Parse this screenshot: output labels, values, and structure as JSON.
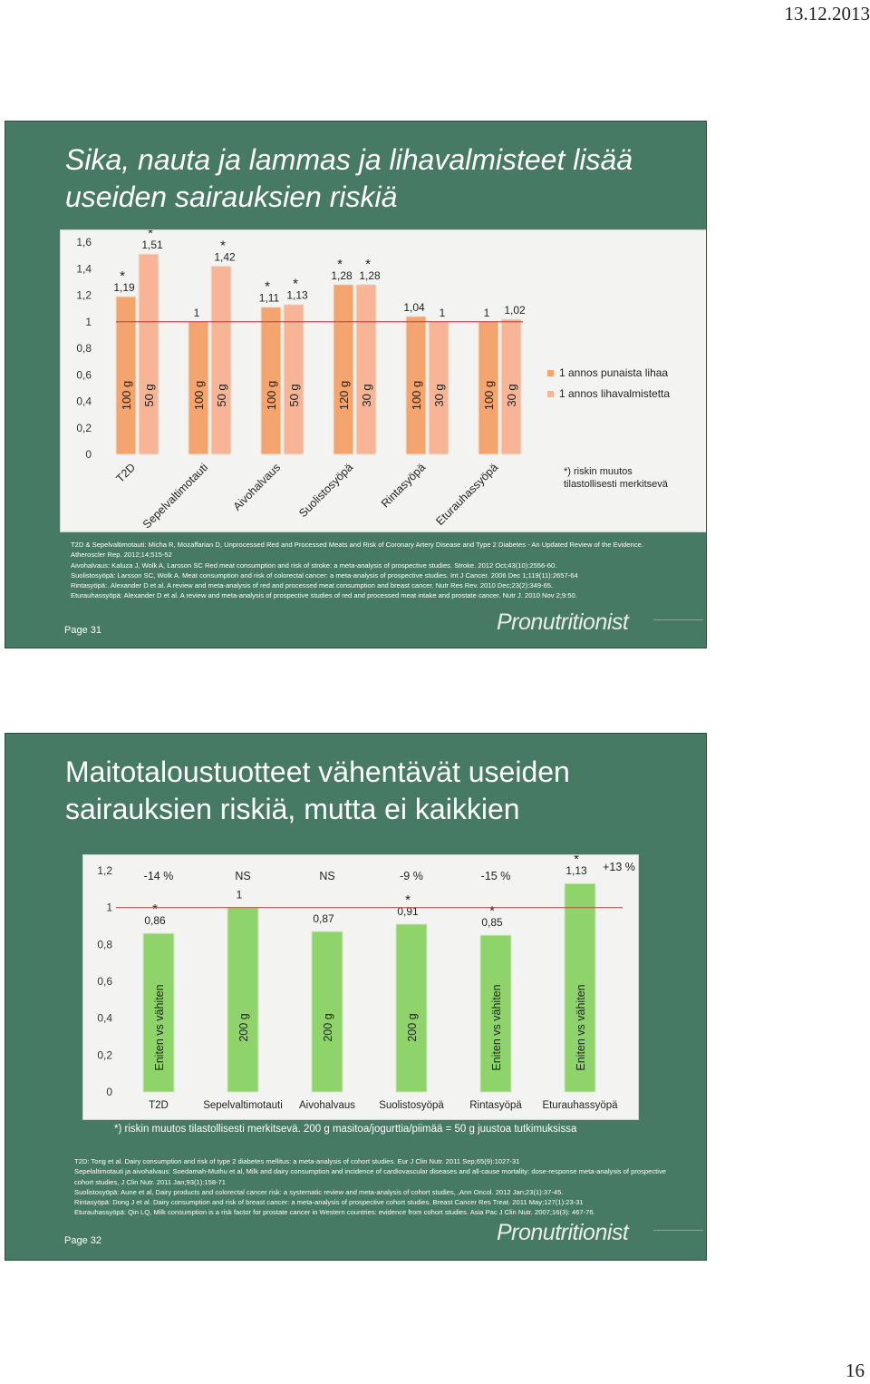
{
  "header": {
    "date": "13.12.2013"
  },
  "footer": {
    "page_number": "16"
  },
  "brand": {
    "name": "Pronutritionist"
  },
  "colors": {
    "slide_bg": "#477a64",
    "bar_red_meat": "#f4a56e",
    "bar_processed": "#f7b596",
    "reference_line": "#c0504d"
  },
  "slide1": {
    "title": "Sika, nauta ja lammas ja lihavalmisteet lisää useiden sairauksien riskiä",
    "legend": [
      "1 annos punaista lihaa",
      "1 annos lihavalmistetta"
    ],
    "note": "*) riskin muutos tilastollisesti merkitsevä",
    "references": [
      "T2D & Sepelvaltimotauti: Micha R, Mozaffarian D, Unprocessed Red and Processed Meats and Risk of Coronary Artery Disease and Type 2 Diabetes - An Updated Review of the Evidence. Atheroscler Rep. 2012;14;515-52",
      "Aivohalvaus: Kaluza J, Wolk A, Larsson SC Red meat consumption and risk of stroke: a meta-analysis of prospective studies. Stroke. 2012 Oct;43(10):2556-60.",
      "Suolistosyöpä: Larsson SC, Wolk A. Meat consumption and risk of colorectal cancer: a meta-analysis of prospective studies. Int J Cancer. 2006 Dec 1;119(11):2657-64",
      "Rintasyöpä:. Alexander D et al. A review and meta-analysis of red and processed meat consumption and breast cancer. Nutr Res Rev. 2010 Dec;23(2):349-65.",
      "Eturauhassyöpä: Alexander D et al.  A review and meta-analysis of prospective studies of red and processed meat intake and prostate cancer. Nutr J. 2010 Nov 2;9:50."
    ],
    "page_label": "Page 31"
  },
  "slide2": {
    "title": "Maitotaloustuotteet vähentävät useiden sairauksien riskiä, mutta ei kaikkien",
    "note": "*) riskin muutos tilastollisesti merkitsevä. 200 g masitoa/jogurttia/piimää = 50 g juustoa tutkimuksissa",
    "references": [
      "T2D: Tong et al. Dairy consumption and risk of type 2 diabetes mellitus:  a meta-analysis of cohort studies. Eur J Clin Nutr. 2011 Sep;65(9):1027-31",
      "Sepelaltimotauti ja aivohalvaus: Soedamah-Muthu et al, Milk and dairy consumption and incidence of cardiovascular diseases and all-cause mortality: dose-response meta-analysis of prospective cohort studies,  J Clin Nutr. 2011 Jan;93(1):158-71",
      "Suolistosyöpä: Aune et al,  Dairy products and colorectal cancer risk: a systematic review and meta-analysis of cohort studies, ,Ann Oncol. 2012 Jan;23(1):37-45.",
      "Rintasyöpä: Dong J et al. Dairy consumption and risk of breast cancer: a meta-analysis of prospective cohort studies. Breast Cancer Res Treat. 2011 May;127(1):23-31",
      "Eturauhassyöpä: Qin LQ, Milk consumption is a risk factor for prostate cancer in Western countries: evidence from cohort studies. Asia Pac J Clin Nutr. 2007;16(3): 467-76."
    ],
    "page_label": "Page 32"
  },
  "chart_data": [
    {
      "type": "bar",
      "categories": [
        "T2D",
        "Sepelvaltimotauti",
        "Aivohalvaus",
        "Suolistosyöpä",
        "Rintasyöpä",
        "Eturauhassyöpä"
      ],
      "series": [
        {
          "name": "1 annos punaista lihaa",
          "values": [
            1.19,
            1,
            1.11,
            1.28,
            1.04,
            1
          ],
          "portions": [
            "100 g",
            "100 g",
            "100 g",
            "120 g",
            "100 g",
            "100 g"
          ],
          "significant": [
            true,
            false,
            true,
            true,
            false,
            false
          ]
        },
        {
          "name": "1 annos lihavalmistetta",
          "values": [
            1.51,
            1.42,
            1.13,
            1.28,
            1,
            1.02
          ],
          "portions": [
            "50 g",
            "50 g",
            "50 g",
            "30 g",
            "30 g",
            "30 g"
          ],
          "significant": [
            true,
            true,
            true,
            true,
            false,
            false
          ]
        }
      ],
      "value_labels": [
        [
          "1,19",
          "1",
          "1,11",
          "1,28",
          "1,04",
          "1"
        ],
        [
          "1,51",
          "1,42",
          "1,13",
          "1,28",
          "1",
          "1,02"
        ]
      ],
      "yticks": [
        "0",
        "0,2",
        "0,4",
        "0,6",
        "0,8",
        "1",
        "1,2",
        "1,4",
        "1,6"
      ],
      "ylim": [
        0,
        1.6
      ],
      "reference_line": 1,
      "legend_position": "right"
    },
    {
      "type": "bar",
      "categories": [
        "T2D",
        "Sepelvaltimotauti",
        "Aivohalvaus",
        "Suolistosyöpä",
        "Rintasyöpä",
        "Eturauhassyöpä"
      ],
      "values": [
        0.86,
        1,
        0.87,
        0.91,
        0.85,
        1.13
      ],
      "value_labels": [
        "0,86",
        "1",
        "0,87",
        "0,91",
        "0,85",
        "1,13"
      ],
      "significant": [
        true,
        false,
        false,
        true,
        true,
        true
      ],
      "bar_labels": [
        "Eniten vs vähiten",
        "200 g",
        "200 g",
        "200 g",
        "Eniten vs vähiten",
        "Eniten vs vähiten"
      ],
      "changes": [
        "-14 %",
        "NS",
        "NS",
        "-9 %",
        "-15 %",
        "+13 %"
      ],
      "yticks": [
        "0",
        "0,2",
        "0,4",
        "0,6",
        "0,8",
        "1",
        "1,2"
      ],
      "ylim": [
        0,
        1.2
      ],
      "reference_line": 1
    }
  ]
}
